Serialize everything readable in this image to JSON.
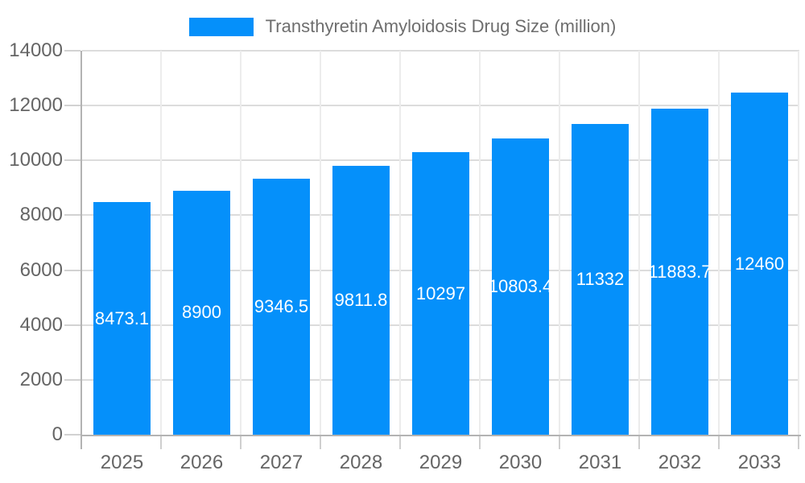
{
  "legend": {
    "label": "Transthyretin Amyloidosis Drug Size (million)"
  },
  "colors": {
    "bar": "#0590FA",
    "axis_line": "#b3b3b3",
    "gridline_h": "#dcdcdc",
    "gridline_v": "#ececec",
    "tick_y": "#d2d2d2",
    "tick_x": "#cfcfcf",
    "axis_text": "#656565",
    "legend_text": "#6e6e6e",
    "value_label": "#ffffff",
    "background": "#ffffff"
  },
  "chart_data": {
    "type": "bar",
    "title": "Transthyretin Amyloidosis Drug Size (million)",
    "categories": [
      "2025",
      "2026",
      "2027",
      "2028",
      "2029",
      "2030",
      "2031",
      "2032",
      "2033"
    ],
    "values": [
      8473.1,
      8900,
      9346.5,
      9811.8,
      10297,
      10803.4,
      11332,
      11883.7,
      12460
    ],
    "value_labels": [
      "8473.1",
      "8900",
      "9346.5",
      "9811.8",
      "10297",
      "10803.4",
      "11332",
      "11883.7",
      "12460"
    ],
    "xlabel": "",
    "ylabel": "",
    "ylim": [
      0,
      14000
    ],
    "ytick_step": 2000,
    "ytick_labels": [
      "0",
      "2000",
      "4000",
      "6000",
      "8000",
      "10000",
      "12000",
      "14000"
    ],
    "grid": true,
    "legend_position": "top",
    "value_label_position": "center-inside"
  }
}
